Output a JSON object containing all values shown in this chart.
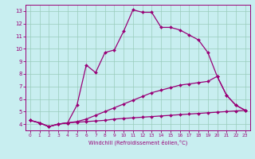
{
  "xlabel": "Windchill (Refroidissement éolien,°C)",
  "bg_color": "#c8eef0",
  "grid_color": "#99ccbb",
  "line_color": "#990077",
  "marker": "D",
  "markersize": 2.0,
  "linewidth": 0.9,
  "xlim": [
    -0.5,
    23.5
  ],
  "ylim": [
    3.5,
    13.5
  ],
  "xticks": [
    0,
    1,
    2,
    3,
    4,
    5,
    6,
    7,
    8,
    9,
    10,
    11,
    12,
    13,
    14,
    15,
    16,
    17,
    18,
    19,
    20,
    21,
    22,
    23
  ],
  "yticks": [
    4,
    5,
    6,
    7,
    8,
    9,
    10,
    11,
    12,
    13
  ],
  "curve1_x": [
    0,
    1,
    2,
    3,
    4,
    5,
    6,
    7,
    8,
    9,
    10,
    11,
    12,
    13,
    14,
    15,
    16,
    17,
    18,
    19,
    20,
    21,
    22,
    23
  ],
  "curve1_y": [
    4.3,
    4.1,
    3.8,
    4.0,
    4.1,
    5.5,
    8.7,
    8.1,
    9.7,
    9.9,
    11.4,
    13.1,
    12.9,
    12.9,
    11.7,
    11.7,
    11.5,
    11.1,
    10.7,
    9.7,
    7.8,
    6.3,
    5.5,
    5.1
  ],
  "curve2_x": [
    0,
    1,
    2,
    3,
    4,
    5,
    6,
    7,
    8,
    9,
    10,
    11,
    12,
    13,
    14,
    15,
    16,
    17,
    18,
    19,
    20,
    21,
    22,
    23
  ],
  "curve2_y": [
    4.3,
    4.1,
    3.8,
    4.0,
    4.1,
    4.15,
    4.2,
    4.25,
    4.3,
    4.4,
    4.45,
    4.5,
    4.55,
    4.6,
    4.65,
    4.7,
    4.75,
    4.8,
    4.85,
    4.9,
    4.95,
    5.0,
    5.05,
    5.1
  ],
  "curve3_x": [
    0,
    1,
    2,
    3,
    4,
    5,
    6,
    7,
    8,
    9,
    10,
    11,
    12,
    13,
    14,
    15,
    16,
    17,
    18,
    19,
    20,
    21,
    22,
    23
  ],
  "curve3_y": [
    4.3,
    4.1,
    3.8,
    4.0,
    4.1,
    4.2,
    4.4,
    4.7,
    5.0,
    5.3,
    5.6,
    5.9,
    6.2,
    6.5,
    6.7,
    6.9,
    7.1,
    7.2,
    7.3,
    7.4,
    7.8,
    6.3,
    5.5,
    5.1
  ]
}
